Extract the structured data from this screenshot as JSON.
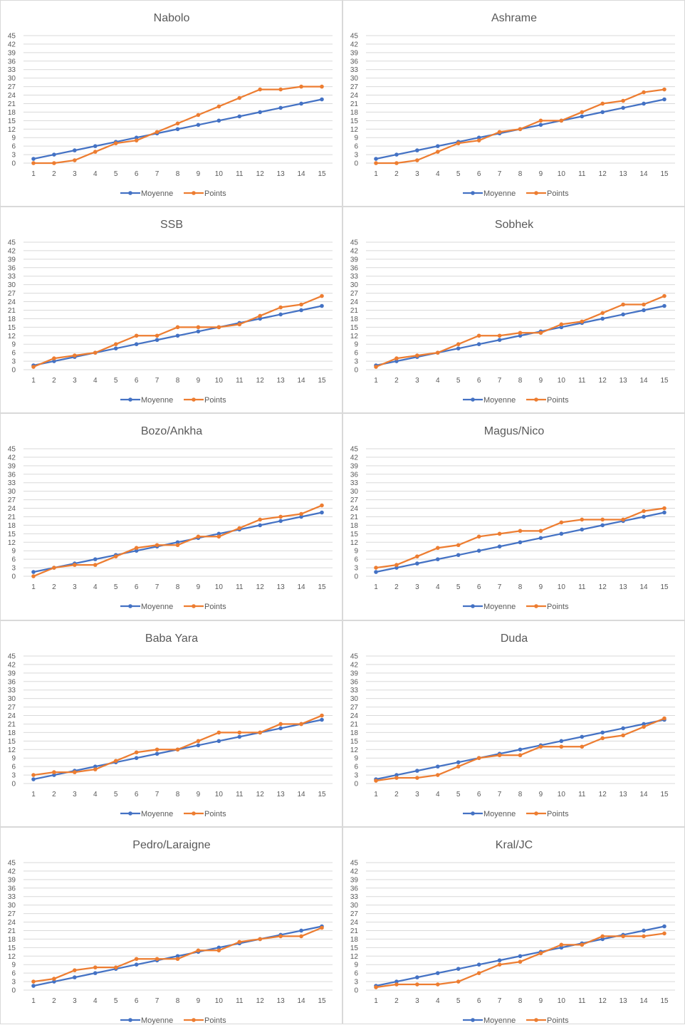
{
  "chart_data": [
    {
      "type": "line",
      "title": "Nabolo",
      "x": [
        1,
        2,
        3,
        4,
        5,
        6,
        7,
        8,
        9,
        10,
        11,
        12,
        13,
        14,
        15
      ],
      "ylim": [
        0,
        45
      ],
      "yticks": [
        0,
        3,
        6,
        9,
        12,
        15,
        18,
        21,
        24,
        27,
        30,
        33,
        36,
        39,
        42,
        45
      ],
      "grid": true,
      "legend": "bottom",
      "series": [
        {
          "name": "Moyenne",
          "color": "#4472c4",
          "values": [
            1.5,
            3,
            4.5,
            6,
            7.5,
            9,
            10.5,
            12,
            13.5,
            15,
            16.5,
            18,
            19.5,
            21,
            22.5
          ]
        },
        {
          "name": "Points",
          "color": "#ed7d31",
          "values": [
            0,
            0,
            1,
            4,
            7,
            8,
            11,
            14,
            17,
            20,
            23,
            26,
            26,
            27,
            27
          ]
        }
      ]
    },
    {
      "type": "line",
      "title": "Ashrame",
      "x": [
        1,
        2,
        3,
        4,
        5,
        6,
        7,
        8,
        9,
        10,
        11,
        12,
        13,
        14,
        15
      ],
      "ylim": [
        0,
        45
      ],
      "yticks": [
        0,
        3,
        6,
        9,
        12,
        15,
        18,
        21,
        24,
        27,
        30,
        33,
        36,
        39,
        42,
        45
      ],
      "grid": true,
      "legend": "bottom",
      "series": [
        {
          "name": "Moyenne",
          "color": "#4472c4",
          "values": [
            1.5,
            3,
            4.5,
            6,
            7.5,
            9,
            10.5,
            12,
            13.5,
            15,
            16.5,
            18,
            19.5,
            21,
            22.5
          ]
        },
        {
          "name": "Points",
          "color": "#ed7d31",
          "values": [
            0,
            0,
            1,
            4,
            7,
            8,
            11,
            12,
            15,
            15,
            18,
            21,
            22,
            25,
            26
          ]
        }
      ]
    },
    {
      "type": "line",
      "title": "SSB",
      "x": [
        1,
        2,
        3,
        4,
        5,
        6,
        7,
        8,
        9,
        10,
        11,
        12,
        13,
        14,
        15
      ],
      "ylim": [
        0,
        45
      ],
      "yticks": [
        0,
        3,
        6,
        9,
        12,
        15,
        18,
        21,
        24,
        27,
        30,
        33,
        36,
        39,
        42,
        45
      ],
      "grid": true,
      "legend": "bottom",
      "series": [
        {
          "name": "Moyenne",
          "color": "#4472c4",
          "values": [
            1.5,
            3,
            4.5,
            6,
            7.5,
            9,
            10.5,
            12,
            13.5,
            15,
            16.5,
            18,
            19.5,
            21,
            22.5
          ]
        },
        {
          "name": "Points",
          "color": "#ed7d31",
          "values": [
            1,
            4,
            5,
            6,
            9,
            12,
            12,
            15,
            15,
            15,
            16,
            19,
            22,
            23,
            26
          ]
        }
      ]
    },
    {
      "type": "line",
      "title": "Sobhek",
      "x": [
        1,
        2,
        3,
        4,
        5,
        6,
        7,
        8,
        9,
        10,
        11,
        12,
        13,
        14,
        15
      ],
      "ylim": [
        0,
        45
      ],
      "yticks": [
        0,
        3,
        6,
        9,
        12,
        15,
        18,
        21,
        24,
        27,
        30,
        33,
        36,
        39,
        42,
        45
      ],
      "grid": true,
      "legend": "bottom",
      "series": [
        {
          "name": "Moyenne",
          "color": "#4472c4",
          "values": [
            1.5,
            3,
            4.5,
            6,
            7.5,
            9,
            10.5,
            12,
            13.5,
            15,
            16.5,
            18,
            19.5,
            21,
            22.5
          ]
        },
        {
          "name": "Points",
          "color": "#ed7d31",
          "values": [
            1,
            4,
            5,
            6,
            9,
            12,
            12,
            13,
            13,
            16,
            17,
            20,
            23,
            23,
            26
          ]
        }
      ]
    },
    {
      "type": "line",
      "title": "Bozo/Ankha",
      "x": [
        1,
        2,
        3,
        4,
        5,
        6,
        7,
        8,
        9,
        10,
        11,
        12,
        13,
        14,
        15
      ],
      "ylim": [
        0,
        45
      ],
      "yticks": [
        0,
        3,
        6,
        9,
        12,
        15,
        18,
        21,
        24,
        27,
        30,
        33,
        36,
        39,
        42,
        45
      ],
      "grid": true,
      "legend": "bottom",
      "series": [
        {
          "name": "Moyenne",
          "color": "#4472c4",
          "values": [
            1.5,
            3,
            4.5,
            6,
            7.5,
            9,
            10.5,
            12,
            13.5,
            15,
            16.5,
            18,
            19.5,
            21,
            22.5
          ]
        },
        {
          "name": "Points",
          "color": "#ed7d31",
          "values": [
            0,
            3,
            4,
            4,
            7,
            10,
            11,
            11,
            14,
            14,
            17,
            20,
            21,
            22,
            25
          ]
        }
      ]
    },
    {
      "type": "line",
      "title": "Magus/Nico",
      "x": [
        1,
        2,
        3,
        4,
        5,
        6,
        7,
        8,
        9,
        10,
        11,
        12,
        13,
        14,
        15
      ],
      "ylim": [
        0,
        45
      ],
      "yticks": [
        0,
        3,
        6,
        9,
        12,
        15,
        18,
        21,
        24,
        27,
        30,
        33,
        36,
        39,
        42,
        45
      ],
      "grid": true,
      "legend": "bottom",
      "series": [
        {
          "name": "Moyenne",
          "color": "#4472c4",
          "values": [
            1.5,
            3,
            4.5,
            6,
            7.5,
            9,
            10.5,
            12,
            13.5,
            15,
            16.5,
            18,
            19.5,
            21,
            22.5
          ]
        },
        {
          "name": "Points",
          "color": "#ed7d31",
          "values": [
            3,
            4,
            7,
            10,
            11,
            14,
            15,
            16,
            16,
            19,
            20,
            20,
            20,
            23,
            24
          ]
        }
      ]
    },
    {
      "type": "line",
      "title": "Baba Yara",
      "x": [
        1,
        2,
        3,
        4,
        5,
        6,
        7,
        8,
        9,
        10,
        11,
        12,
        13,
        14,
        15
      ],
      "ylim": [
        0,
        45
      ],
      "yticks": [
        0,
        3,
        6,
        9,
        12,
        15,
        18,
        21,
        24,
        27,
        30,
        33,
        36,
        39,
        42,
        45
      ],
      "grid": true,
      "legend": "bottom",
      "series": [
        {
          "name": "Moyenne",
          "color": "#4472c4",
          "values": [
            1.5,
            3,
            4.5,
            6,
            7.5,
            9,
            10.5,
            12,
            13.5,
            15,
            16.5,
            18,
            19.5,
            21,
            22.5
          ]
        },
        {
          "name": "Points",
          "color": "#ed7d31",
          "values": [
            3,
            4,
            4,
            5,
            8,
            11,
            12,
            12,
            15,
            18,
            18,
            18,
            21,
            21,
            24
          ]
        }
      ]
    },
    {
      "type": "line",
      "title": "Duda",
      "x": [
        1,
        2,
        3,
        4,
        5,
        6,
        7,
        8,
        9,
        10,
        11,
        12,
        13,
        14,
        15
      ],
      "ylim": [
        0,
        45
      ],
      "yticks": [
        0,
        3,
        6,
        9,
        12,
        15,
        18,
        21,
        24,
        27,
        30,
        33,
        36,
        39,
        42,
        45
      ],
      "grid": true,
      "legend": "bottom",
      "series": [
        {
          "name": "Moyenne",
          "color": "#4472c4",
          "values": [
            1.5,
            3,
            4.5,
            6,
            7.5,
            9,
            10.5,
            12,
            13.5,
            15,
            16.5,
            18,
            19.5,
            21,
            22.5
          ]
        },
        {
          "name": "Points",
          "color": "#ed7d31",
          "values": [
            1,
            2,
            2,
            3,
            6,
            9,
            10,
            10,
            13,
            13,
            13,
            16,
            17,
            20,
            23
          ]
        }
      ]
    },
    {
      "type": "line",
      "title": "Pedro/Laraigne",
      "x": [
        1,
        2,
        3,
        4,
        5,
        6,
        7,
        8,
        9,
        10,
        11,
        12,
        13,
        14,
        15
      ],
      "ylim": [
        0,
        45
      ],
      "yticks": [
        0,
        3,
        6,
        9,
        12,
        15,
        18,
        21,
        24,
        27,
        30,
        33,
        36,
        39,
        42,
        45
      ],
      "grid": true,
      "legend": "bottom",
      "series": [
        {
          "name": "Moyenne",
          "color": "#4472c4",
          "values": [
            1.5,
            3,
            4.5,
            6,
            7.5,
            9,
            10.5,
            12,
            13.5,
            15,
            16.5,
            18,
            19.5,
            21,
            22.5
          ]
        },
        {
          "name": "Points",
          "color": "#ed7d31",
          "values": [
            3,
            4,
            7,
            8,
            8,
            11,
            11,
            11,
            14,
            14,
            17,
            18,
            19,
            19,
            22
          ]
        }
      ]
    },
    {
      "type": "line",
      "title": "Kral/JC",
      "x": [
        1,
        2,
        3,
        4,
        5,
        6,
        7,
        8,
        9,
        10,
        11,
        12,
        13,
        14,
        15
      ],
      "ylim": [
        0,
        45
      ],
      "yticks": [
        0,
        3,
        6,
        9,
        12,
        15,
        18,
        21,
        24,
        27,
        30,
        33,
        36,
        39,
        42,
        45
      ],
      "grid": true,
      "legend": "bottom",
      "series": [
        {
          "name": "Moyenne",
          "color": "#4472c4",
          "values": [
            1.5,
            3,
            4.5,
            6,
            7.5,
            9,
            10.5,
            12,
            13.5,
            15,
            16.5,
            18,
            19.5,
            21,
            22.5
          ]
        },
        {
          "name": "Points",
          "color": "#ed7d31",
          "values": [
            1,
            2,
            2,
            2,
            3,
            6,
            9,
            10,
            13,
            16,
            16,
            19,
            19,
            19,
            20
          ]
        }
      ]
    }
  ]
}
